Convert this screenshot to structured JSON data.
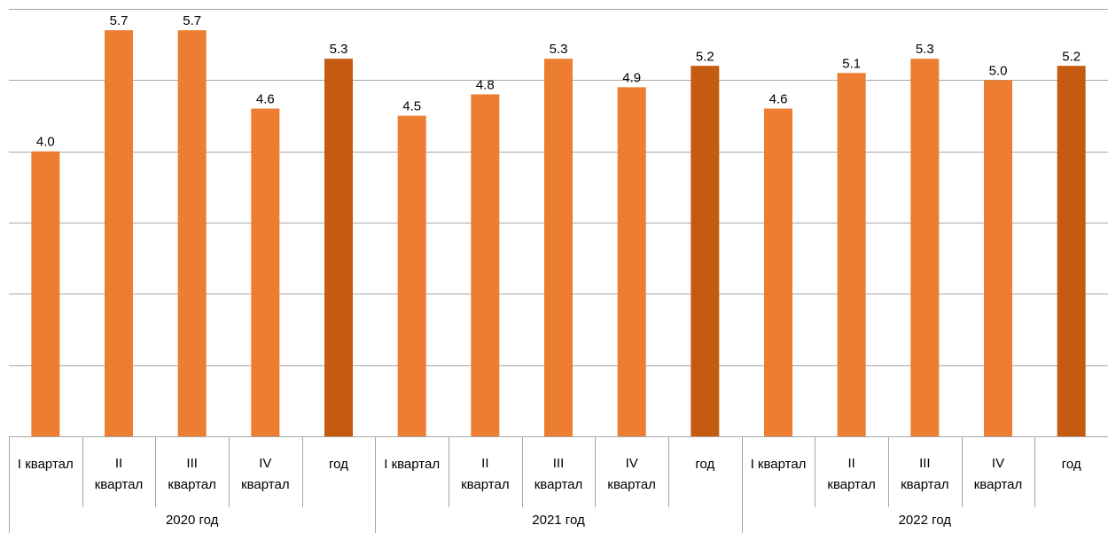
{
  "chart_data": {
    "type": "bar",
    "groups": [
      {
        "label": "2020 год",
        "categories": [
          [
            "I квартал"
          ],
          [
            "II",
            "квартал"
          ],
          [
            "III",
            "квартал"
          ],
          [
            "IV",
            "квартал"
          ],
          [
            "год"
          ]
        ],
        "values": [
          4.0,
          5.7,
          5.7,
          4.6,
          5.3
        ],
        "kinds": [
          "quarter",
          "quarter",
          "quarter",
          "quarter",
          "year"
        ]
      },
      {
        "label": "2021 год",
        "categories": [
          [
            "I квартал"
          ],
          [
            "II",
            "квартал"
          ],
          [
            "III",
            "квартал"
          ],
          [
            "IV",
            "квартал"
          ],
          [
            "год"
          ]
        ],
        "values": [
          4.5,
          4.8,
          5.3,
          4.9,
          5.2
        ],
        "kinds": [
          "quarter",
          "quarter",
          "quarter",
          "quarter",
          "year"
        ]
      },
      {
        "label": "2022 год",
        "categories": [
          [
            "I квартал"
          ],
          [
            "II",
            "квартал"
          ],
          [
            "III",
            "квартал"
          ],
          [
            "IV",
            "квартал"
          ],
          [
            "год"
          ]
        ],
        "values": [
          4.6,
          5.1,
          5.3,
          5.0,
          5.2
        ],
        "kinds": [
          "quarter",
          "quarter",
          "quarter",
          "quarter",
          "year"
        ]
      }
    ],
    "ylim": [
      0,
      6.0
    ],
    "y_tick_step": 1.0,
    "y_tick_labels_shown": false,
    "grid": true,
    "legend": "none",
    "colors": {
      "quarter": "#ed7d31",
      "year": "#c55a11",
      "grid": "#a6a6a6"
    }
  }
}
